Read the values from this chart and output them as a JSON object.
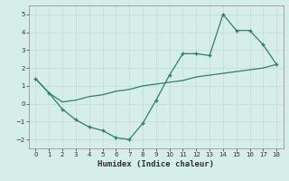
{
  "xlabel": "Humidex (Indice chaleur)",
  "line1_x": [
    0,
    1,
    2,
    3,
    4,
    5,
    6,
    7,
    8,
    9,
    10,
    11,
    12,
    13,
    14,
    15,
    16,
    17,
    18
  ],
  "line1_y": [
    1.4,
    0.6,
    -0.3,
    -0.9,
    -1.3,
    -1.5,
    -1.9,
    -2.0,
    -1.1,
    0.2,
    1.6,
    2.8,
    2.8,
    2.7,
    5.0,
    4.1,
    4.1,
    3.3,
    2.2
  ],
  "line2_x": [
    0,
    1,
    2,
    3,
    4,
    5,
    6,
    7,
    8,
    9,
    10,
    11,
    12,
    13,
    14,
    15,
    16,
    17,
    18
  ],
  "line2_y": [
    1.4,
    0.6,
    0.1,
    0.2,
    0.4,
    0.5,
    0.7,
    0.8,
    1.0,
    1.1,
    1.2,
    1.3,
    1.5,
    1.6,
    1.7,
    1.8,
    1.9,
    2.0,
    2.2
  ],
  "line_color": "#2e7d6e",
  "bg_color": "#d6eeea",
  "grid_color": "#c8dcd8",
  "ylim": [
    -2.5,
    5.5
  ],
  "xlim": [
    -0.5,
    18.5
  ],
  "yticks": [
    -2,
    -1,
    0,
    1,
    2,
    3,
    4,
    5
  ],
  "xticks": [
    0,
    1,
    2,
    3,
    4,
    5,
    6,
    7,
    8,
    9,
    10,
    11,
    12,
    13,
    14,
    15,
    16,
    17,
    18
  ]
}
